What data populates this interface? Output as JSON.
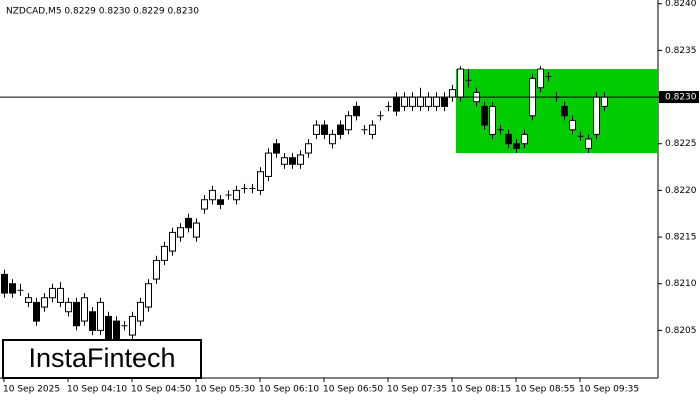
{
  "chart_data": {
    "type": "candlestick",
    "title": "NZDCAD,M5  0.8229 0.8230 0.8229 0.8230",
    "logo": "InstaFintech",
    "categories": [
      "10 Sep 2025",
      null,
      null,
      null,
      null,
      null,
      null,
      null,
      "10 Sep 04:10",
      null,
      null,
      null,
      null,
      null,
      null,
      null,
      "10 Sep 04:50",
      null,
      null,
      null,
      null,
      null,
      null,
      null,
      "10 Sep 05:30",
      null,
      null,
      null,
      null,
      null,
      null,
      null,
      "10 Sep 06:10",
      null,
      null,
      null,
      null,
      null,
      null,
      null,
      "10 Sep 06:50",
      null,
      null,
      null,
      null,
      null,
      null,
      null,
      "10 Sep 07:35",
      null,
      null,
      null,
      null,
      null,
      null,
      null,
      "10 Sep 08:15",
      null,
      null,
      null,
      null,
      null,
      null,
      null,
      "10 Sep 08:55",
      null,
      null,
      null,
      null,
      null,
      null,
      null,
      "10 Sep 09:35",
      null,
      null,
      null
    ],
    "open": [
      0.8211,
      0.821,
      0.82093,
      0.8208,
      0.8208,
      0.82075,
      0.82085,
      0.8208,
      0.8207,
      0.8208,
      0.8206,
      0.8207,
      0.8205,
      0.82065,
      0.8206,
      0.82055,
      0.82045,
      0.8206,
      0.82075,
      0.82105,
      0.82125,
      0.82135,
      0.8215,
      0.8217,
      0.8215,
      0.8218,
      0.8219,
      0.8219,
      0.82195,
      0.8219,
      0.82202,
      0.82202,
      0.822,
      0.82215,
      0.8225,
      0.82228,
      0.82235,
      0.82228,
      0.8224,
      0.8226,
      0.8227,
      0.8225,
      0.8227,
      0.82265,
      0.8229,
      0.82265,
      0.8226,
      0.8228,
      0.8229,
      0.823,
      0.8229,
      0.8229,
      0.8229,
      0.8229,
      0.8229,
      0.823,
      0.823,
      0.823,
      0.82318,
      0.82295,
      0.8229,
      0.8226,
      0.82265,
      0.8226,
      0.8225,
      0.8225,
      0.8228,
      0.8231,
      0.82322,
      0.823,
      0.8229,
      0.82265,
      0.82258,
      0.82245,
      0.8226,
      0.8229
    ],
    "high": [
      0.82115,
      0.82105,
      0.821,
      0.8209,
      0.82085,
      0.8209,
      0.821,
      0.82102,
      0.82085,
      0.82085,
      0.8209,
      0.82075,
      0.82085,
      0.8207,
      0.82065,
      0.8206,
      0.8207,
      0.82085,
      0.82105,
      0.8213,
      0.82145,
      0.8216,
      0.82165,
      0.82175,
      0.8217,
      0.82195,
      0.82205,
      0.82195,
      0.822,
      0.82205,
      0.82207,
      0.82207,
      0.82225,
      0.82245,
      0.82255,
      0.8224,
      0.8224,
      0.82243,
      0.82255,
      0.82275,
      0.82275,
      0.82265,
      0.82275,
      0.82285,
      0.82295,
      0.8227,
      0.82275,
      0.82285,
      0.82295,
      0.82305,
      0.82305,
      0.82305,
      0.8231,
      0.82305,
      0.82305,
      0.82305,
      0.82313,
      0.82333,
      0.8233,
      0.8231,
      0.82295,
      0.82295,
      0.8227,
      0.82265,
      0.82255,
      0.82265,
      0.82325,
      0.82333,
      0.82327,
      0.82305,
      0.82295,
      0.8228,
      0.82263,
      0.8226,
      0.82305,
      0.82305
    ],
    "low": [
      0.82085,
      0.82085,
      0.82087,
      0.82075,
      0.82055,
      0.8207,
      0.8208,
      0.82075,
      0.82065,
      0.8205,
      0.82055,
      0.82045,
      0.82045,
      0.82035,
      0.82035,
      0.8205,
      0.8204,
      0.82055,
      0.8207,
      0.821,
      0.8212,
      0.8213,
      0.82145,
      0.82155,
      0.82145,
      0.82175,
      0.82185,
      0.8218,
      0.8219,
      0.82185,
      0.82197,
      0.82197,
      0.82195,
      0.8221,
      0.82235,
      0.82223,
      0.82223,
      0.82223,
      0.82235,
      0.82255,
      0.82255,
      0.82245,
      0.82255,
      0.8226,
      0.82275,
      0.8226,
      0.82255,
      0.82275,
      0.82285,
      0.8228,
      0.82285,
      0.82285,
      0.82285,
      0.82285,
      0.82285,
      0.82285,
      0.82295,
      0.82295,
      0.8231,
      0.8229,
      0.82265,
      0.82255,
      0.8226,
      0.82245,
      0.8224,
      0.82245,
      0.82275,
      0.82305,
      0.82317,
      0.82295,
      0.82275,
      0.8226,
      0.82253,
      0.8224,
      0.82255,
      0.82285
    ],
    "close": [
      0.8209,
      0.8209,
      0.82092,
      0.82085,
      0.8206,
      0.82085,
      0.82095,
      0.82095,
      0.8208,
      0.82055,
      0.82085,
      0.8205,
      0.8208,
      0.8204,
      0.8204,
      0.82055,
      0.82065,
      0.8208,
      0.821,
      0.82125,
      0.8214,
      0.82155,
      0.8216,
      0.8216,
      0.82165,
      0.8219,
      0.822,
      0.82185,
      0.82195,
      0.822,
      0.82202,
      0.82202,
      0.8222,
      0.8224,
      0.8224,
      0.82235,
      0.82228,
      0.82238,
      0.8225,
      0.8227,
      0.8226,
      0.8226,
      0.8226,
      0.8228,
      0.8228,
      0.82265,
      0.8227,
      0.8228,
      0.8229,
      0.82285,
      0.823,
      0.823,
      0.823,
      0.823,
      0.823,
      0.8229,
      0.82308,
      0.8233,
      0.82318,
      0.82305,
      0.8227,
      0.8229,
      0.82265,
      0.8225,
      0.82245,
      0.8226,
      0.8232,
      0.8233,
      0.82322,
      0.823,
      0.8228,
      0.82275,
      0.82258,
      0.82255,
      0.823,
      0.823
    ],
    "ylim": [
      0.81999,
      0.82404
    ],
    "yticks": [
      0.8205,
      {
        "value": 0.821,
        "label": "0.8210"
      },
      0.8215,
      {
        "value": 0.822,
        "label": "0.8220"
      },
      0.8225,
      {
        "value": 0.823,
        "label": "0.8230"
      },
      0.8235,
      {
        "value": 0.824,
        "label": "0.8240"
      }
    ],
    "last_price": {
      "value": 0.823,
      "label": "0.8230"
    },
    "zone": {
      "high": 0.8233,
      "low": 0.8224,
      "color": "#00cc00"
    }
  }
}
